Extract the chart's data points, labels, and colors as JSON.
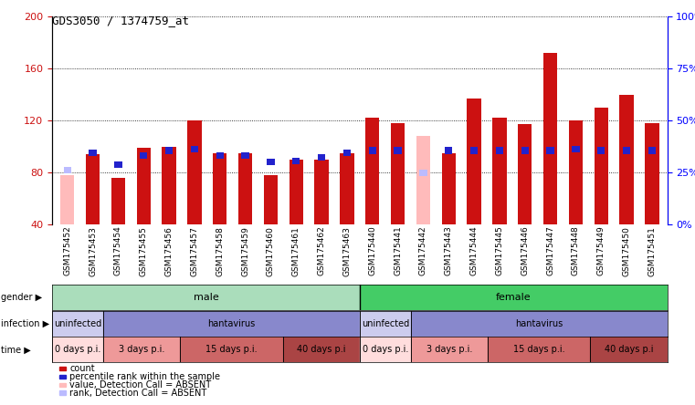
{
  "title": "GDS3050 / 1374759_at",
  "samples": [
    "GSM175452",
    "GSM175453",
    "GSM175454",
    "GSM175455",
    "GSM175456",
    "GSM175457",
    "GSM175458",
    "GSM175459",
    "GSM175460",
    "GSM175461",
    "GSM175462",
    "GSM175463",
    "GSM175440",
    "GSM175441",
    "GSM175442",
    "GSM175443",
    "GSM175444",
    "GSM175445",
    "GSM175446",
    "GSM175447",
    "GSM175448",
    "GSM175449",
    "GSM175450",
    "GSM175451"
  ],
  "count_values": [
    78,
    94,
    76,
    99,
    100,
    120,
    95,
    95,
    78,
    90,
    90,
    95,
    122,
    118,
    108,
    95,
    137,
    122,
    117,
    172,
    120,
    130,
    140,
    118
  ],
  "rank_values": [
    82,
    95,
    86,
    93,
    97,
    98,
    93,
    93,
    88,
    89,
    92,
    95,
    97,
    97,
    80,
    97,
    97,
    97,
    97,
    97,
    98,
    97,
    97,
    97
  ],
  "is_absent_count": [
    true,
    false,
    false,
    false,
    false,
    false,
    false,
    false,
    false,
    false,
    false,
    false,
    false,
    false,
    true,
    false,
    false,
    false,
    false,
    false,
    false,
    false,
    false,
    false
  ],
  "is_absent_rank": [
    true,
    false,
    false,
    false,
    false,
    false,
    false,
    false,
    false,
    false,
    false,
    false,
    false,
    false,
    true,
    false,
    false,
    false,
    false,
    false,
    false,
    false,
    false,
    false
  ],
  "absent_count_values": [
    78,
    0,
    0,
    0,
    0,
    0,
    0,
    0,
    0,
    0,
    0,
    0,
    0,
    0,
    108,
    0,
    0,
    0,
    0,
    0,
    0,
    0,
    0,
    0
  ],
  "absent_rank_values": [
    82,
    0,
    0,
    0,
    0,
    0,
    0,
    0,
    0,
    0,
    0,
    0,
    0,
    0,
    80,
    0,
    0,
    0,
    0,
    0,
    0,
    0,
    0,
    0
  ],
  "ylim_left": [
    40,
    200
  ],
  "ylim_right": [
    0,
    100
  ],
  "yticks_left": [
    40,
    80,
    120,
    160,
    200
  ],
  "yticks_right": [
    0,
    25,
    50,
    75,
    100
  ],
  "ytick_labels_right": [
    "0%",
    "25%",
    "50%",
    "75%",
    "100%"
  ],
  "color_count": "#cc1111",
  "color_rank": "#2222cc",
  "color_absent_count": "#ffbbbb",
  "color_absent_rank": "#bbbbff",
  "gender_male_color": "#aaddbb",
  "gender_female_color": "#44cc66",
  "infection_uninfected_color": "#ccccee",
  "infection_hantavirus_color": "#8888cc",
  "time_colors": [
    "#ffdddd",
    "#ee9999",
    "#cc6666",
    "#aa4444"
  ],
  "gender_segments": [
    {
      "start": 0,
      "end": 12,
      "label": "male"
    },
    {
      "start": 12,
      "end": 24,
      "label": "female"
    }
  ],
  "infection_segments": [
    {
      "start": 0,
      "end": 2,
      "label": "uninfected"
    },
    {
      "start": 2,
      "end": 12,
      "label": "hantavirus"
    },
    {
      "start": 12,
      "end": 14,
      "label": "uninfected"
    },
    {
      "start": 14,
      "end": 24,
      "label": "hantavirus"
    }
  ],
  "time_segments": [
    {
      "start": 0,
      "end": 2,
      "label": "0 days p.i.",
      "color_idx": 0
    },
    {
      "start": 2,
      "end": 5,
      "label": "3 days p.i.",
      "color_idx": 1
    },
    {
      "start": 5,
      "end": 9,
      "label": "15 days p.i.",
      "color_idx": 2
    },
    {
      "start": 9,
      "end": 12,
      "label": "40 days p.i",
      "color_idx": 3
    },
    {
      "start": 12,
      "end": 14,
      "label": "0 days p.i.",
      "color_idx": 0
    },
    {
      "start": 14,
      "end": 17,
      "label": "3 days p.i.",
      "color_idx": 1
    },
    {
      "start": 17,
      "end": 21,
      "label": "15 days p.i.",
      "color_idx": 2
    },
    {
      "start": 21,
      "end": 24,
      "label": "40 days p.i",
      "color_idx": 3
    }
  ],
  "legend_items": [
    {
      "color": "#cc1111",
      "label": "count"
    },
    {
      "color": "#2222cc",
      "label": "percentile rank within the sample"
    },
    {
      "color": "#ffbbbb",
      "label": "value, Detection Call = ABSENT"
    },
    {
      "color": "#bbbbff",
      "label": "rank, Detection Call = ABSENT"
    }
  ],
  "bar_width": 0.55,
  "rank_bar_width": 0.3
}
